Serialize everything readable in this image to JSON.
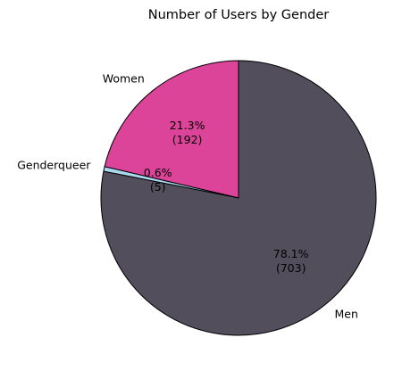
{
  "chart_data": {
    "type": "pie",
    "title": "Number of Users by Gender",
    "slices": [
      {
        "label": "Women",
        "value": 192,
        "percent": "21.3%",
        "count_label": "(192)",
        "color": "#db4499"
      },
      {
        "label": "Genderqueer",
        "value": 5,
        "percent": "0.6%",
        "count_label": "(5)",
        "color": "#a9d8ee"
      },
      {
        "label": "Men",
        "value": 703,
        "percent": "78.1%",
        "count_label": "(703)",
        "color": "#524e5c"
      }
    ],
    "start_angle_deg": 90,
    "direction": "counterclockwise",
    "edge_color": "#000000"
  }
}
